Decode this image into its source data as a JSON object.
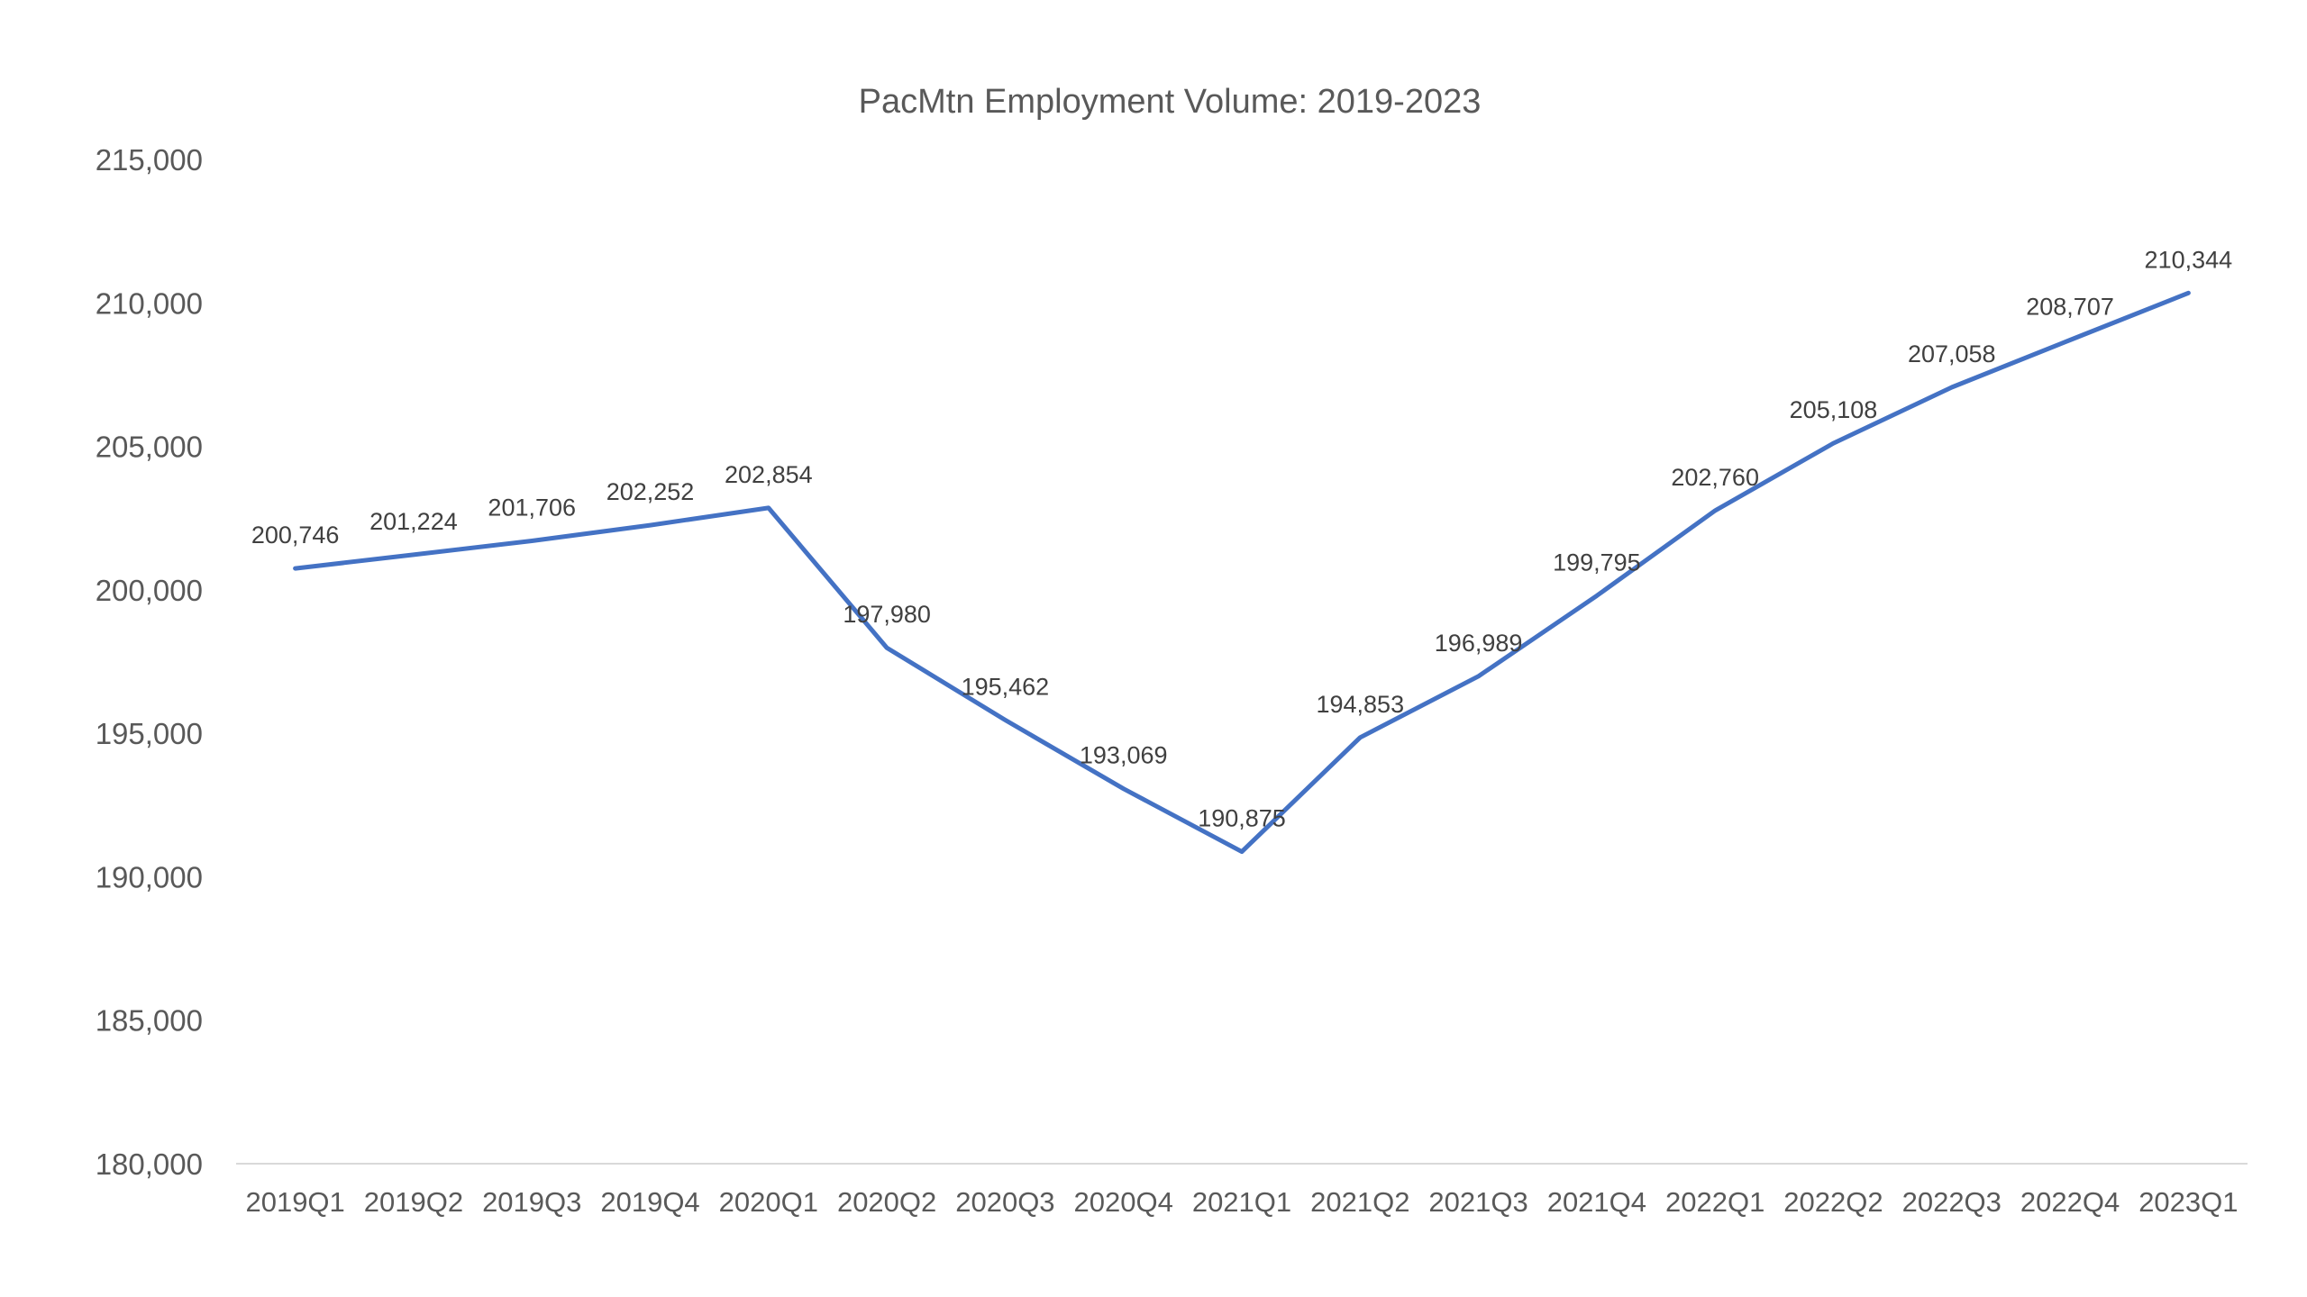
{
  "chart_data": {
    "type": "line",
    "title": "PacMtn Employment Volume: 2019-2023",
    "xlabel": "",
    "ylabel": "",
    "categories": [
      "2019Q1",
      "2019Q2",
      "2019Q3",
      "2019Q4",
      "2020Q1",
      "2020Q2",
      "2020Q3",
      "2020Q4",
      "2021Q1",
      "2021Q2",
      "2021Q3",
      "2021Q4",
      "2022Q1",
      "2022Q2",
      "2022Q3",
      "2022Q4",
      "2023Q1"
    ],
    "series": [
      {
        "values": [
          200746,
          201224,
          201706,
          202252,
          202854,
          197980,
          195462,
          193069,
          190875,
          194853,
          196989,
          199795,
          202760,
          205108,
          207058,
          208707,
          210344
        ],
        "color": "#4472c4"
      }
    ],
    "data_labels": [
      "200,746",
      "201,224",
      "201,706",
      "202,252",
      "202,854",
      "197,980",
      "195,462",
      "193,069",
      "190,875",
      "194,853",
      "196,989",
      "199,795",
      "202,760",
      "205,108",
      "207,058",
      "208,707",
      "210,344"
    ],
    "ylim": [
      180000,
      215000
    ],
    "y_ticks": [
      180000,
      185000,
      190000,
      195000,
      200000,
      205000,
      210000,
      215000
    ],
    "y_tick_labels": [
      "180,000",
      "185,000",
      "190,000",
      "195,000",
      "200,000",
      "205,000",
      "210,000",
      "215,000"
    ],
    "grid": false,
    "legend": "none"
  }
}
